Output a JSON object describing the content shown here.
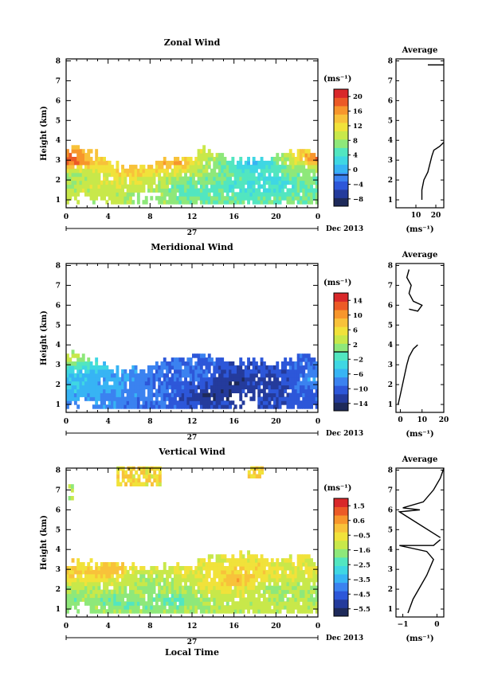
{
  "figure": {
    "x_axis_title": "Local Time",
    "date_label": "Dec 2013",
    "colorbar_unit": "(ms⁻¹)",
    "average_unit": "(ms⁻¹)"
  },
  "colors": {
    "colormap": [
      "#1e2a5a",
      "#243b9c",
      "#2d57d9",
      "#3b82f0",
      "#37b4f4",
      "#3fd7e3",
      "#52e6c0",
      "#8ee87a",
      "#c8e84a",
      "#f1e23a",
      "#f8c23a",
      "#f7962c",
      "#ec5a26",
      "#d9282a"
    ]
  },
  "chart_data": [
    {
      "type": "heatmap",
      "title": "Zonal Wind",
      "ylabel": "Height (km)",
      "xlabel": "",
      "x_ticks": [
        "0",
        "4",
        "8",
        "12",
        "16",
        "20",
        "0"
      ],
      "x_day_label": "27",
      "y_ticks": [
        "1",
        "2",
        "3",
        "4",
        "5",
        "6",
        "7",
        "8"
      ],
      "xlim": [
        0,
        24
      ],
      "ylim": [
        0.6,
        8.1
      ],
      "colorbar": {
        "min": -8,
        "max": 22,
        "ticks": [
          "20",
          "16",
          "12",
          "8",
          "4",
          "0",
          "−4",
          "−8"
        ],
        "zero_line": 0
      },
      "top_boundary": [
        [
          0,
          3.8
        ],
        [
          3,
          3.3
        ],
        [
          4.5,
          2.7
        ],
        [
          8,
          2.8
        ],
        [
          11,
          3.2
        ],
        [
          13,
          3.6
        ],
        [
          16,
          3.0
        ],
        [
          18,
          3.0
        ],
        [
          20,
          3.3
        ],
        [
          22,
          3.4
        ],
        [
          24,
          3.5
        ]
      ],
      "field": [
        [
          0,
          3.0,
          20
        ],
        [
          0,
          2.2,
          8
        ],
        [
          3,
          2.2,
          10
        ],
        [
          6,
          2.5,
          14
        ],
        [
          10,
          2.9,
          16
        ],
        [
          12,
          1.6,
          6
        ],
        [
          14,
          2.2,
          8
        ],
        [
          17,
          1.7,
          4
        ],
        [
          18,
          2.8,
          2
        ],
        [
          20,
          2.0,
          4
        ],
        [
          22,
          2.4,
          8
        ],
        [
          24,
          3.1,
          18
        ]
      ],
      "gaps": [
        [
          1,
          1.1
        ],
        [
          3,
          1.0
        ],
        [
          7.5,
          1.3
        ]
      ],
      "average": {
        "title": "Average",
        "xlabel": "(ms⁻¹)",
        "x_ticks": [
          "10",
          "20"
        ],
        "xlim": [
          0,
          24
        ],
        "profile": [
          [
            13,
            1.0
          ],
          [
            13,
            1.5
          ],
          [
            14,
            2.0
          ],
          [
            16,
            2.4
          ],
          [
            17,
            2.8
          ],
          [
            18,
            3.2
          ],
          [
            19,
            3.5
          ],
          [
            22,
            3.7
          ],
          [
            24,
            3.9
          ]
        ],
        "cap": [
          [
            16,
            7.8
          ],
          [
            24,
            7.8
          ]
        ]
      }
    },
    {
      "type": "heatmap",
      "title": "Meridional Wind",
      "ylabel": "Height (km)",
      "xlabel": "",
      "x_ticks": [
        "0",
        "4",
        "8",
        "12",
        "16",
        "20",
        "0"
      ],
      "x_day_label": "27",
      "y_ticks": [
        "1",
        "2",
        "3",
        "4",
        "5",
        "6",
        "7",
        "8"
      ],
      "xlim": [
        0,
        24
      ],
      "ylim": [
        0.6,
        8.1
      ],
      "colorbar": {
        "min": -16,
        "max": 16,
        "ticks": [
          "14",
          "10",
          "6",
          "2",
          "−2",
          "−6",
          "−10",
          "−14"
        ],
        "zero_line": 0
      },
      "top_boundary": [
        [
          0,
          3.8
        ],
        [
          3,
          3.1
        ],
        [
          4.5,
          2.7
        ],
        [
          8,
          3.0
        ],
        [
          10,
          3.3
        ],
        [
          12,
          3.6
        ],
        [
          14,
          3.4
        ],
        [
          16,
          3.1
        ],
        [
          18,
          3.2
        ],
        [
          20,
          3.1
        ],
        [
          22,
          3.3
        ],
        [
          24,
          3.5
        ]
      ],
      "field": [
        [
          0,
          3.4,
          4
        ],
        [
          0,
          2.0,
          -4
        ],
        [
          4,
          2.0,
          -6
        ],
        [
          7,
          1.5,
          -8
        ],
        [
          10,
          2.0,
          -10
        ],
        [
          12,
          2.5,
          -9
        ],
        [
          14,
          1.5,
          -14
        ],
        [
          16,
          2.2,
          -14
        ],
        [
          18,
          1.7,
          -13
        ],
        [
          20,
          2.2,
          -12
        ],
        [
          22,
          1.8,
          -10
        ],
        [
          24,
          2.2,
          -6
        ]
      ],
      "gaps": [
        [
          17,
          1.5
        ],
        [
          1.5,
          1.2
        ]
      ],
      "average": {
        "title": "Average",
        "xlabel": "(ms⁻¹)",
        "x_ticks": [
          "0",
          "10",
          "20"
        ],
        "xlim": [
          -2,
          20
        ],
        "profile": [
          [
            -1,
            1.0
          ],
          [
            0,
            1.5
          ],
          [
            1,
            2.0
          ],
          [
            2,
            2.5
          ],
          [
            3,
            3.0
          ],
          [
            4,
            3.4
          ],
          [
            6,
            3.8
          ],
          [
            8,
            4.0
          ]
        ],
        "upper": [
          [
            4,
            5.8
          ],
          [
            8,
            5.7
          ],
          [
            10,
            6.0
          ],
          [
            6,
            6.2
          ],
          [
            4,
            6.6
          ],
          [
            5,
            7.0
          ],
          [
            3,
            7.4
          ],
          [
            4,
            7.8
          ]
        ]
      }
    },
    {
      "type": "heatmap",
      "title": "Vertical Wind",
      "ylabel": "Height (km)",
      "xlabel": "Local Time",
      "x_ticks": [
        "0",
        "4",
        "8",
        "12",
        "16",
        "20",
        "0"
      ],
      "x_day_label": "27",
      "y_ticks": [
        "1",
        "2",
        "3",
        "4",
        "5",
        "6",
        "7",
        "8"
      ],
      "xlim": [
        0,
        24
      ],
      "ylim": [
        0.6,
        8.1
      ],
      "colorbar": {
        "min": -6,
        "max": 2,
        "ticks": [
          "1.5",
          "0.6",
          "−0.5",
          "−1.6",
          "−2.5",
          "−3.5",
          "−4.5",
          "−5.5"
        ]
      },
      "top_boundary": [
        [
          0,
          3.4
        ],
        [
          3,
          3.3
        ],
        [
          6,
          3.2
        ],
        [
          9,
          3.1
        ],
        [
          12,
          3.4
        ],
        [
          15,
          3.7
        ],
        [
          18,
          3.7
        ],
        [
          21,
          3.5
        ],
        [
          24,
          3.6
        ]
      ],
      "field": [
        [
          0,
          3.0,
          -0.2
        ],
        [
          0,
          1.5,
          -1.8
        ],
        [
          4,
          3.0,
          0.2
        ],
        [
          5,
          1.5,
          -2.0
        ],
        [
          8,
          2.5,
          -1.6
        ],
        [
          10,
          1.5,
          -2.2
        ],
        [
          12,
          2.5,
          -1.2
        ],
        [
          14,
          3.0,
          -0.6
        ],
        [
          16,
          2.5,
          0.4
        ],
        [
          18,
          3.0,
          -0.5
        ],
        [
          20,
          2.0,
          -1.6
        ],
        [
          22,
          2.8,
          -0.8
        ],
        [
          24,
          2.0,
          -1.6
        ]
      ],
      "gaps": [
        [
          1,
          1.2
        ]
      ],
      "patches": [
        [
          [
            4.8,
            7.2,
            9,
            8.1,
            -0.3
          ]
        ],
        [
          [
            17.3,
            7.6,
            18.6,
            8.0,
            -0.3
          ]
        ],
        [
          [
            0.2,
            6.5,
            0.7,
            7.2,
            -1.3
          ]
        ]
      ],
      "average": {
        "title": "Average",
        "xlabel": "(ms⁻¹)",
        "x_ticks": [
          "−1",
          "0"
        ],
        "xlim": [
          -1.2,
          0.2
        ],
        "profile": [
          [
            -0.85,
            0.8
          ],
          [
            -0.7,
            1.5
          ],
          [
            -0.5,
            2.1
          ],
          [
            -0.3,
            2.7
          ],
          [
            -0.1,
            3.5
          ],
          [
            -0.3,
            3.9
          ],
          [
            -1.1,
            4.2
          ],
          [
            -0.1,
            4.2
          ],
          [
            0.1,
            4.5
          ]
        ],
        "upper": [
          [
            0.1,
            4.6
          ],
          [
            -1.1,
            5.9
          ],
          [
            -0.5,
            6.0
          ],
          [
            -1.0,
            6.1
          ],
          [
            -0.4,
            6.4
          ],
          [
            -0.1,
            7.0
          ],
          [
            0.1,
            7.6
          ],
          [
            0.2,
            8.1
          ]
        ]
      }
    }
  ]
}
